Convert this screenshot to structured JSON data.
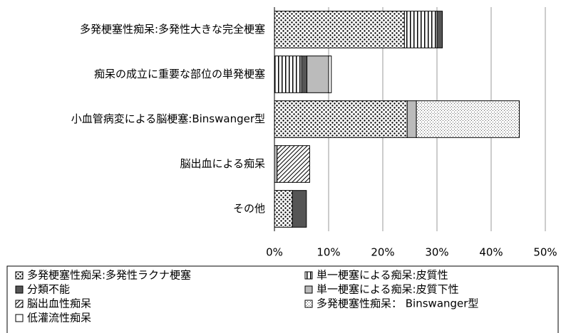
{
  "chart_data": {
    "type": "stacked-barh",
    "categories": [
      "多発梗塞性痴呆:多発性大きな完全梗塞",
      "痴呆の成立に重要な部位の単発梗塞",
      "小血管病変による脳梗塞:Binswanger型",
      "脳出血による痴呆",
      "その他"
    ],
    "series": [
      {
        "name": "多発梗塞性痴呆:多発性ラクナ梗塞",
        "color": "#000000",
        "pattern": "dots",
        "values": [
          24,
          0,
          24.5,
          0,
          3.3
        ]
      },
      {
        "name": "単一梗塞による痴呆:皮質性",
        "color": "#000000",
        "pattern": "vstripes",
        "values": [
          6,
          5,
          0,
          0,
          0
        ]
      },
      {
        "name": "分類不能",
        "color": "#555555",
        "pattern": "solid",
        "values": [
          1,
          1,
          0,
          0,
          2.6
        ]
      },
      {
        "name": "単一梗塞による痴呆:皮質下性",
        "color": "#bbbbbb",
        "pattern": "solid",
        "values": [
          0,
          4,
          1.7,
          0.5,
          0
        ]
      },
      {
        "name": "脳出血性痴呆",
        "color": "#000000",
        "pattern": "diag",
        "values": [
          0,
          0,
          0,
          6,
          0
        ]
      },
      {
        "name": "多発梗塞性痴呆： Binswanger型",
        "color": "#000000",
        "pattern": "finedots",
        "values": [
          0,
          0,
          19,
          0,
          0
        ]
      },
      {
        "name": "低灌流性痴呆",
        "color": "#ffffff",
        "pattern": "solid",
        "values": [
          0,
          0.5,
          0,
          0,
          0
        ]
      }
    ],
    "xlim": [
      0,
      50
    ],
    "xticks": [
      {
        "value": 0,
        "label": "0%"
      },
      {
        "value": 10,
        "label": "10%"
      },
      {
        "value": 20,
        "label": "20%"
      },
      {
        "value": 30,
        "label": "30%"
      },
      {
        "value": 40,
        "label": "40%"
      },
      {
        "value": 50,
        "label": "50%"
      }
    ],
    "grid": true,
    "legend": "bottom"
  }
}
